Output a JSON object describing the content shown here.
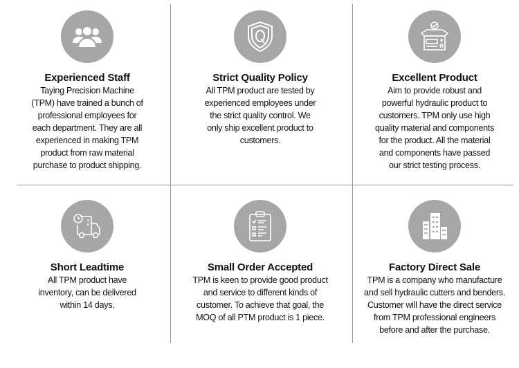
{
  "colors": {
    "icon_bg": "#a6a6a6",
    "divider": "#9a9a9a"
  },
  "features": [
    {
      "icon": "people-group-icon",
      "title": "Experienced Staff",
      "lines": [
        "Taying Precision Machine",
        "(TPM) have trained a bunch of",
        "professional employees for",
        "each department. They are all",
        "experienced in making TPM",
        "product from raw material",
        "purchase to product shipping."
      ]
    },
    {
      "icon": "shield-q-icon",
      "title": "Strict Quality Policy",
      "lines": [
        "All TPM product are tested by",
        "experienced employees under",
        "the strict quality control. We",
        "only ship excellent product to",
        "customers."
      ]
    },
    {
      "icon": "open-box-check-icon",
      "title": "Excellent Product",
      "lines": [
        "Aim to provide robust and",
        "powerful hydraulic product to",
        "customers. TPM only use high",
        "quality material and components",
        "for the product. All the material",
        "and components have passed",
        "our strict testing process."
      ]
    },
    {
      "icon": "delivery-truck-clock-icon",
      "title": "Short Leadtime",
      "lines": [
        "All TPM product have",
        "inventory, can be delivered",
        "within 14 days."
      ]
    },
    {
      "icon": "clipboard-checklist-icon",
      "title": "Small Order Accepted",
      "lines": [
        "TPM is keen to provide good product",
        "and service to different kinds of",
        "customer. To achieve that goal, the",
        "MOQ of all PTM product is 1 piece."
      ]
    },
    {
      "icon": "factory-building-icon",
      "title": "Factory Direct Sale",
      "lines": [
        "TPM is a company who manufacture",
        "and sell hydraulic cutters and benders.",
        "Customer will have the direct service",
        "from TPM professional engineers",
        "before and after the purchase."
      ]
    }
  ]
}
